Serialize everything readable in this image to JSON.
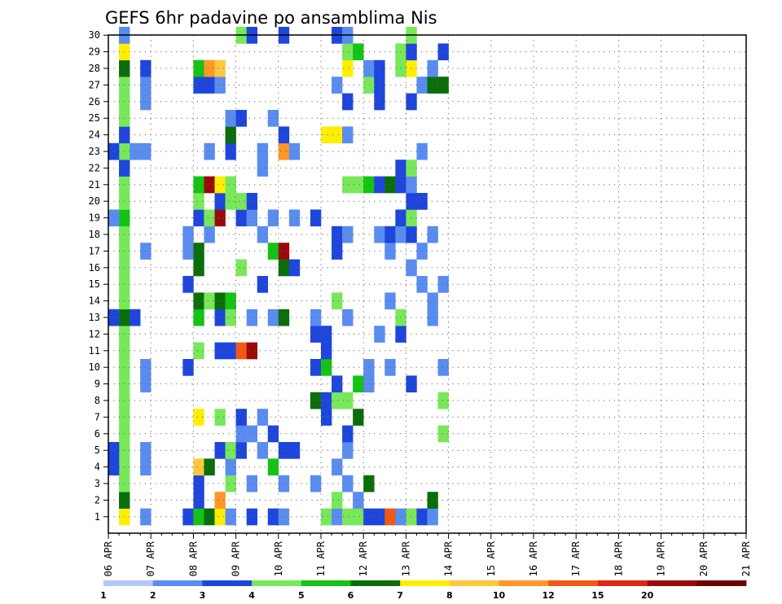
{
  "chart_data": {
    "type": "heatmap",
    "title": "GEFS 6hr padavine po ansamblima Nis",
    "y_labels": [
      "1",
      "2",
      "3",
      "4",
      "5",
      "6",
      "7",
      "8",
      "9",
      "10",
      "11",
      "12",
      "13",
      "14",
      "15",
      "16",
      "17",
      "18",
      "19",
      "20",
      "21",
      "22",
      "23",
      "24",
      "25",
      "26",
      "27",
      "28",
      "29",
      "30"
    ],
    "x_labels": [
      "06 APR",
      "07 APR",
      "08 APR",
      "09 APR",
      "10 APR",
      "11 APR",
      "12 APR",
      "13 APR",
      "14 APR",
      "15 APR",
      "16 APR",
      "17 APR",
      "18 APR",
      "19 APR",
      "20 APR",
      "21 APR"
    ],
    "legend_labels": [
      "1",
      "2",
      "3",
      "4",
      "5",
      "6",
      "7",
      "8",
      "10",
      "12",
      "15",
      "20"
    ],
    "legend_colors": [
      "#b4c8f8",
      "#5a8cf0",
      "#1e46dc",
      "#78e85a",
      "#14c314",
      "#0a6e0a",
      "#ffee00",
      "#ffc83c",
      "#ff9628",
      "#f05a14",
      "#dc2814",
      "#9a0a0a",
      "#6e0000"
    ],
    "grid": "dotted",
    "cells": [
      [
        1,
        0,
        6
      ],
      [
        1,
        1,
        5
      ],
      [
        1,
        2,
        3
      ],
      [
        1,
        3,
        3
      ],
      [
        1,
        4,
        3
      ],
      [
        1,
        5,
        3
      ],
      [
        1,
        6,
        3
      ],
      [
        1,
        7,
        3
      ],
      [
        1,
        8,
        3
      ],
      [
        1,
        9,
        3
      ],
      [
        1,
        10,
        3
      ],
      [
        1,
        11,
        3
      ],
      [
        1,
        12,
        5
      ],
      [
        1,
        13,
        3
      ],
      [
        1,
        14,
        3
      ],
      [
        1,
        15,
        3
      ],
      [
        1,
        16,
        3
      ],
      [
        1,
        17,
        3
      ],
      [
        1,
        18,
        4
      ],
      [
        1,
        19,
        3
      ],
      [
        1,
        20,
        3
      ],
      [
        1,
        21,
        2
      ],
      [
        1,
        22,
        3
      ],
      [
        1,
        23,
        2
      ],
      [
        1,
        24,
        3
      ],
      [
        1,
        25,
        3
      ],
      [
        1,
        26,
        3
      ],
      [
        1,
        27,
        5
      ],
      [
        1,
        28,
        6
      ],
      [
        1,
        29,
        1
      ],
      [
        0,
        22,
        2
      ],
      [
        0,
        18,
        1
      ],
      [
        0,
        12,
        2
      ],
      [
        0,
        4,
        2
      ],
      [
        0,
        3,
        2
      ],
      [
        3,
        0,
        1
      ],
      [
        3,
        3,
        1
      ],
      [
        3,
        4,
        1
      ],
      [
        3,
        8,
        1
      ],
      [
        3,
        9,
        1
      ],
      [
        3,
        16,
        1
      ],
      [
        3,
        22,
        1
      ],
      [
        3,
        25,
        1
      ],
      [
        3,
        26,
        1
      ],
      [
        3,
        27,
        2
      ],
      [
        2,
        12,
        2
      ],
      [
        2,
        22,
        1
      ],
      [
        7,
        0,
        2
      ],
      [
        7,
        9,
        2
      ],
      [
        7,
        14,
        2
      ],
      [
        7,
        16,
        1
      ],
      [
        7,
        17,
        1
      ],
      [
        8,
        0,
        4
      ],
      [
        8,
        1,
        2
      ],
      [
        8,
        2,
        2
      ],
      [
        8,
        3,
        7
      ],
      [
        8,
        6,
        6
      ],
      [
        8,
        10,
        3
      ],
      [
        8,
        12,
        4
      ],
      [
        8,
        13,
        5
      ],
      [
        8,
        15,
        5
      ],
      [
        8,
        16,
        5
      ],
      [
        8,
        18,
        2
      ],
      [
        8,
        19,
        3
      ],
      [
        8,
        20,
        4
      ],
      [
        8,
        26,
        2
      ],
      [
        8,
        27,
        4
      ],
      [
        9,
        0,
        5
      ],
      [
        9,
        3,
        5
      ],
      [
        9,
        13,
        3
      ],
      [
        9,
        17,
        1
      ],
      [
        9,
        18,
        3
      ],
      [
        9,
        20,
        11
      ],
      [
        9,
        22,
        1
      ],
      [
        9,
        26,
        2
      ],
      [
        9,
        27,
        8
      ],
      [
        10,
        0,
        6
      ],
      [
        10,
        1,
        8
      ],
      [
        10,
        4,
        2
      ],
      [
        10,
        6,
        3
      ],
      [
        10,
        10,
        2
      ],
      [
        10,
        12,
        2
      ],
      [
        10,
        13,
        5
      ],
      [
        10,
        18,
        11
      ],
      [
        10,
        19,
        2
      ],
      [
        10,
        20,
        6
      ],
      [
        10,
        26,
        1
      ],
      [
        10,
        27,
        7
      ],
      [
        11,
        0,
        1
      ],
      [
        11,
        2,
        3
      ],
      [
        11,
        3,
        1
      ],
      [
        11,
        4,
        3
      ],
      [
        11,
        10,
        2
      ],
      [
        11,
        12,
        3
      ],
      [
        11,
        13,
        4
      ],
      [
        11,
        19,
        3
      ],
      [
        11,
        20,
        3
      ],
      [
        11,
        22,
        2
      ],
      [
        11,
        23,
        5
      ],
      [
        11,
        24,
        1
      ],
      [
        12,
        4,
        2
      ],
      [
        12,
        5,
        1
      ],
      [
        12,
        6,
        2
      ],
      [
        12,
        10,
        9
      ],
      [
        12,
        15,
        3
      ],
      [
        12,
        18,
        2
      ],
      [
        12,
        19,
        3
      ],
      [
        12,
        24,
        2
      ],
      [
        12,
        29,
        3
      ],
      [
        13,
        0,
        2
      ],
      [
        13,
        2,
        1
      ],
      [
        13,
        5,
        1
      ],
      [
        13,
        10,
        11
      ],
      [
        13,
        12,
        1
      ],
      [
        13,
        18,
        1
      ],
      [
        13,
        19,
        2
      ],
      [
        13,
        29,
        2
      ],
      [
        14,
        4,
        1
      ],
      [
        14,
        6,
        1
      ],
      [
        14,
        14,
        2
      ],
      [
        14,
        17,
        1
      ],
      [
        14,
        21,
        1
      ],
      [
        14,
        22,
        1
      ],
      [
        15,
        0,
        2
      ],
      [
        15,
        3,
        4
      ],
      [
        15,
        5,
        2
      ],
      [
        15,
        12,
        1
      ],
      [
        15,
        16,
        4
      ],
      [
        15,
        18,
        1
      ],
      [
        15,
        24,
        1
      ],
      [
        16,
        0,
        1
      ],
      [
        16,
        2,
        1
      ],
      [
        16,
        4,
        2
      ],
      [
        16,
        12,
        5
      ],
      [
        16,
        15,
        5
      ],
      [
        16,
        16,
        11
      ],
      [
        16,
        22,
        8
      ],
      [
        16,
        23,
        2
      ],
      [
        16,
        29,
        2
      ],
      [
        17,
        4,
        2
      ],
      [
        17,
        15,
        2
      ],
      [
        17,
        18,
        1
      ],
      [
        17,
        22,
        1
      ],
      [
        19,
        2,
        1
      ],
      [
        19,
        7,
        5
      ],
      [
        19,
        9,
        2
      ],
      [
        19,
        11,
        2
      ],
      [
        19,
        12,
        1
      ],
      [
        19,
        18,
        2
      ],
      [
        20,
        0,
        3
      ],
      [
        20,
        6,
        2
      ],
      [
        20,
        7,
        2
      ],
      [
        20,
        9,
        4
      ],
      [
        20,
        10,
        2
      ],
      [
        20,
        11,
        2
      ],
      [
        20,
        23,
        6
      ],
      [
        21,
        0,
        1
      ],
      [
        21,
        1,
        3
      ],
      [
        21,
        3,
        1
      ],
      [
        21,
        7,
        3
      ],
      [
        21,
        8,
        2
      ],
      [
        21,
        13,
        3
      ],
      [
        21,
        16,
        2
      ],
      [
        21,
        17,
        2
      ],
      [
        21,
        23,
        6
      ],
      [
        21,
        26,
        1
      ],
      [
        21,
        29,
        2
      ],
      [
        22,
        0,
        3
      ],
      [
        22,
        2,
        1
      ],
      [
        22,
        4,
        1
      ],
      [
        22,
        5,
        2
      ],
      [
        22,
        7,
        3
      ],
      [
        22,
        12,
        1
      ],
      [
        22,
        17,
        1
      ],
      [
        22,
        20,
        3
      ],
      [
        22,
        23,
        1
      ],
      [
        22,
        25,
        2
      ],
      [
        22,
        27,
        6
      ],
      [
        22,
        28,
        3
      ],
      [
        22,
        29,
        1
      ],
      [
        23,
        0,
        3
      ],
      [
        23,
        1,
        1
      ],
      [
        23,
        6,
        5
      ],
      [
        23,
        8,
        4
      ],
      [
        23,
        20,
        3
      ],
      [
        23,
        28,
        4
      ],
      [
        24,
        0,
        2
      ],
      [
        24,
        2,
        5
      ],
      [
        24,
        8,
        1
      ],
      [
        24,
        9,
        1
      ],
      [
        24,
        20,
        4
      ],
      [
        24,
        26,
        3
      ],
      [
        24,
        27,
        1
      ],
      [
        25,
        0,
        2
      ],
      [
        25,
        11,
        1
      ],
      [
        25,
        17,
        1
      ],
      [
        25,
        20,
        2
      ],
      [
        25,
        25,
        2
      ],
      [
        25,
        26,
        2
      ],
      [
        25,
        27,
        2
      ],
      [
        26,
        0,
        9
      ],
      [
        26,
        9,
        1
      ],
      [
        26,
        13,
        1
      ],
      [
        26,
        16,
        1
      ],
      [
        26,
        17,
        2
      ],
      [
        26,
        20,
        5
      ],
      [
        27,
        0,
        1
      ],
      [
        27,
        11,
        2
      ],
      [
        27,
        12,
        3
      ],
      [
        27,
        17,
        1
      ],
      [
        27,
        18,
        2
      ],
      [
        27,
        20,
        2
      ],
      [
        27,
        21,
        2
      ],
      [
        27,
        27,
        3
      ],
      [
        27,
        28,
        3
      ],
      [
        28,
        0,
        3
      ],
      [
        28,
        8,
        2
      ],
      [
        28,
        15,
        1
      ],
      [
        28,
        17,
        2
      ],
      [
        28,
        18,
        3
      ],
      [
        28,
        19,
        2
      ],
      [
        28,
        20,
        1
      ],
      [
        28,
        21,
        3
      ],
      [
        28,
        25,
        2
      ],
      [
        28,
        27,
        6
      ],
      [
        28,
        28,
        2
      ],
      [
        28,
        29,
        3
      ],
      [
        29,
        0,
        2
      ],
      [
        29,
        14,
        1
      ],
      [
        29,
        16,
        1
      ],
      [
        29,
        19,
        2
      ],
      [
        29,
        22,
        1
      ],
      [
        29,
        26,
        1
      ],
      [
        30,
        0,
        1
      ],
      [
        30,
        1,
        5
      ],
      [
        30,
        12,
        1
      ],
      [
        30,
        13,
        1
      ],
      [
        30,
        17,
        1
      ],
      [
        30,
        26,
        5
      ],
      [
        30,
        27,
        1
      ],
      [
        31,
        5,
        3
      ],
      [
        31,
        7,
        3
      ],
      [
        31,
        9,
        1
      ],
      [
        31,
        14,
        1
      ],
      [
        31,
        26,
        5
      ],
      [
        31,
        28,
        2
      ]
    ]
  }
}
